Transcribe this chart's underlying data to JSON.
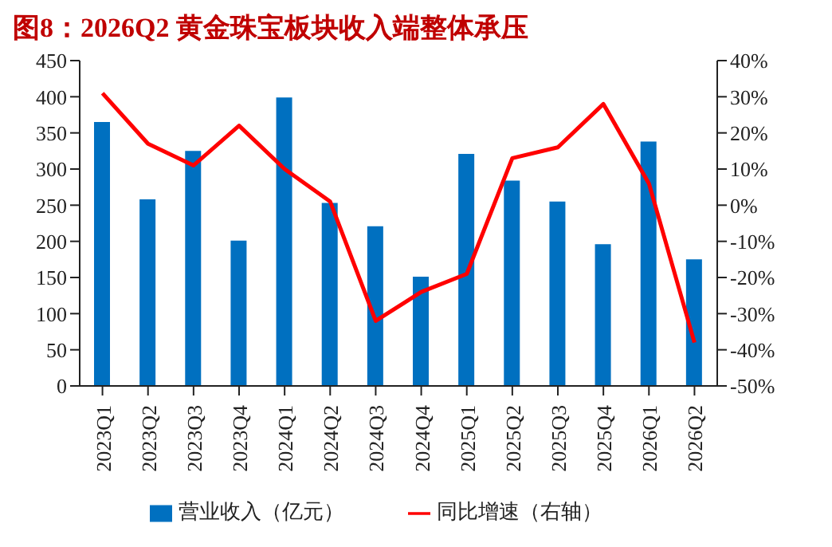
{
  "chart_data": {
    "type": "bar",
    "title": "图8：2026Q2 黄金珠宝板块收入端整体承压",
    "categories": [
      "2023Q1",
      "2023Q2",
      "2023Q3",
      "2023Q4",
      "2024Q1",
      "2024Q2",
      "2024Q3",
      "2024Q4",
      "2025Q1",
      "2025Q2",
      "2025Q3",
      "2025Q4",
      "2026Q1",
      "2026Q2"
    ],
    "series": [
      {
        "name": "营业收入（亿元）",
        "color": "#0070c0",
        "values": [
          365,
          258,
          325,
          201,
          399,
          253,
          221,
          151,
          321,
          284,
          255,
          196,
          338,
          175
        ]
      },
      {
        "name": "同比增速（右轴）",
        "type": "line",
        "axis": "y2",
        "color": "#ff0000",
        "values": [
          31,
          17,
          11,
          22,
          10,
          1,
          -32,
          -24,
          -19,
          13,
          16,
          28,
          6,
          -38
        ]
      }
    ],
    "ylim": [
      0,
      450
    ],
    "yticks": [
      0,
      50,
      100,
      150,
      200,
      250,
      300,
      350,
      400,
      450
    ],
    "y2lim": [
      -50,
      40
    ],
    "y2ticks": [
      {
        "value": -50,
        "label": "-50%"
      },
      {
        "value": -40,
        "label": "-40%"
      },
      {
        "value": -30,
        "label": "-30%"
      },
      {
        "value": -20,
        "label": "-20%"
      },
      {
        "value": -10,
        "label": "-10%"
      },
      {
        "value": 0,
        "label": "0%"
      },
      {
        "value": 10,
        "label": "10%"
      },
      {
        "value": 20,
        "label": "20%"
      },
      {
        "value": 30,
        "label": "30%"
      },
      {
        "value": 40,
        "label": "40%"
      }
    ],
    "grid": false,
    "legend": "bottom",
    "marker": "none"
  }
}
